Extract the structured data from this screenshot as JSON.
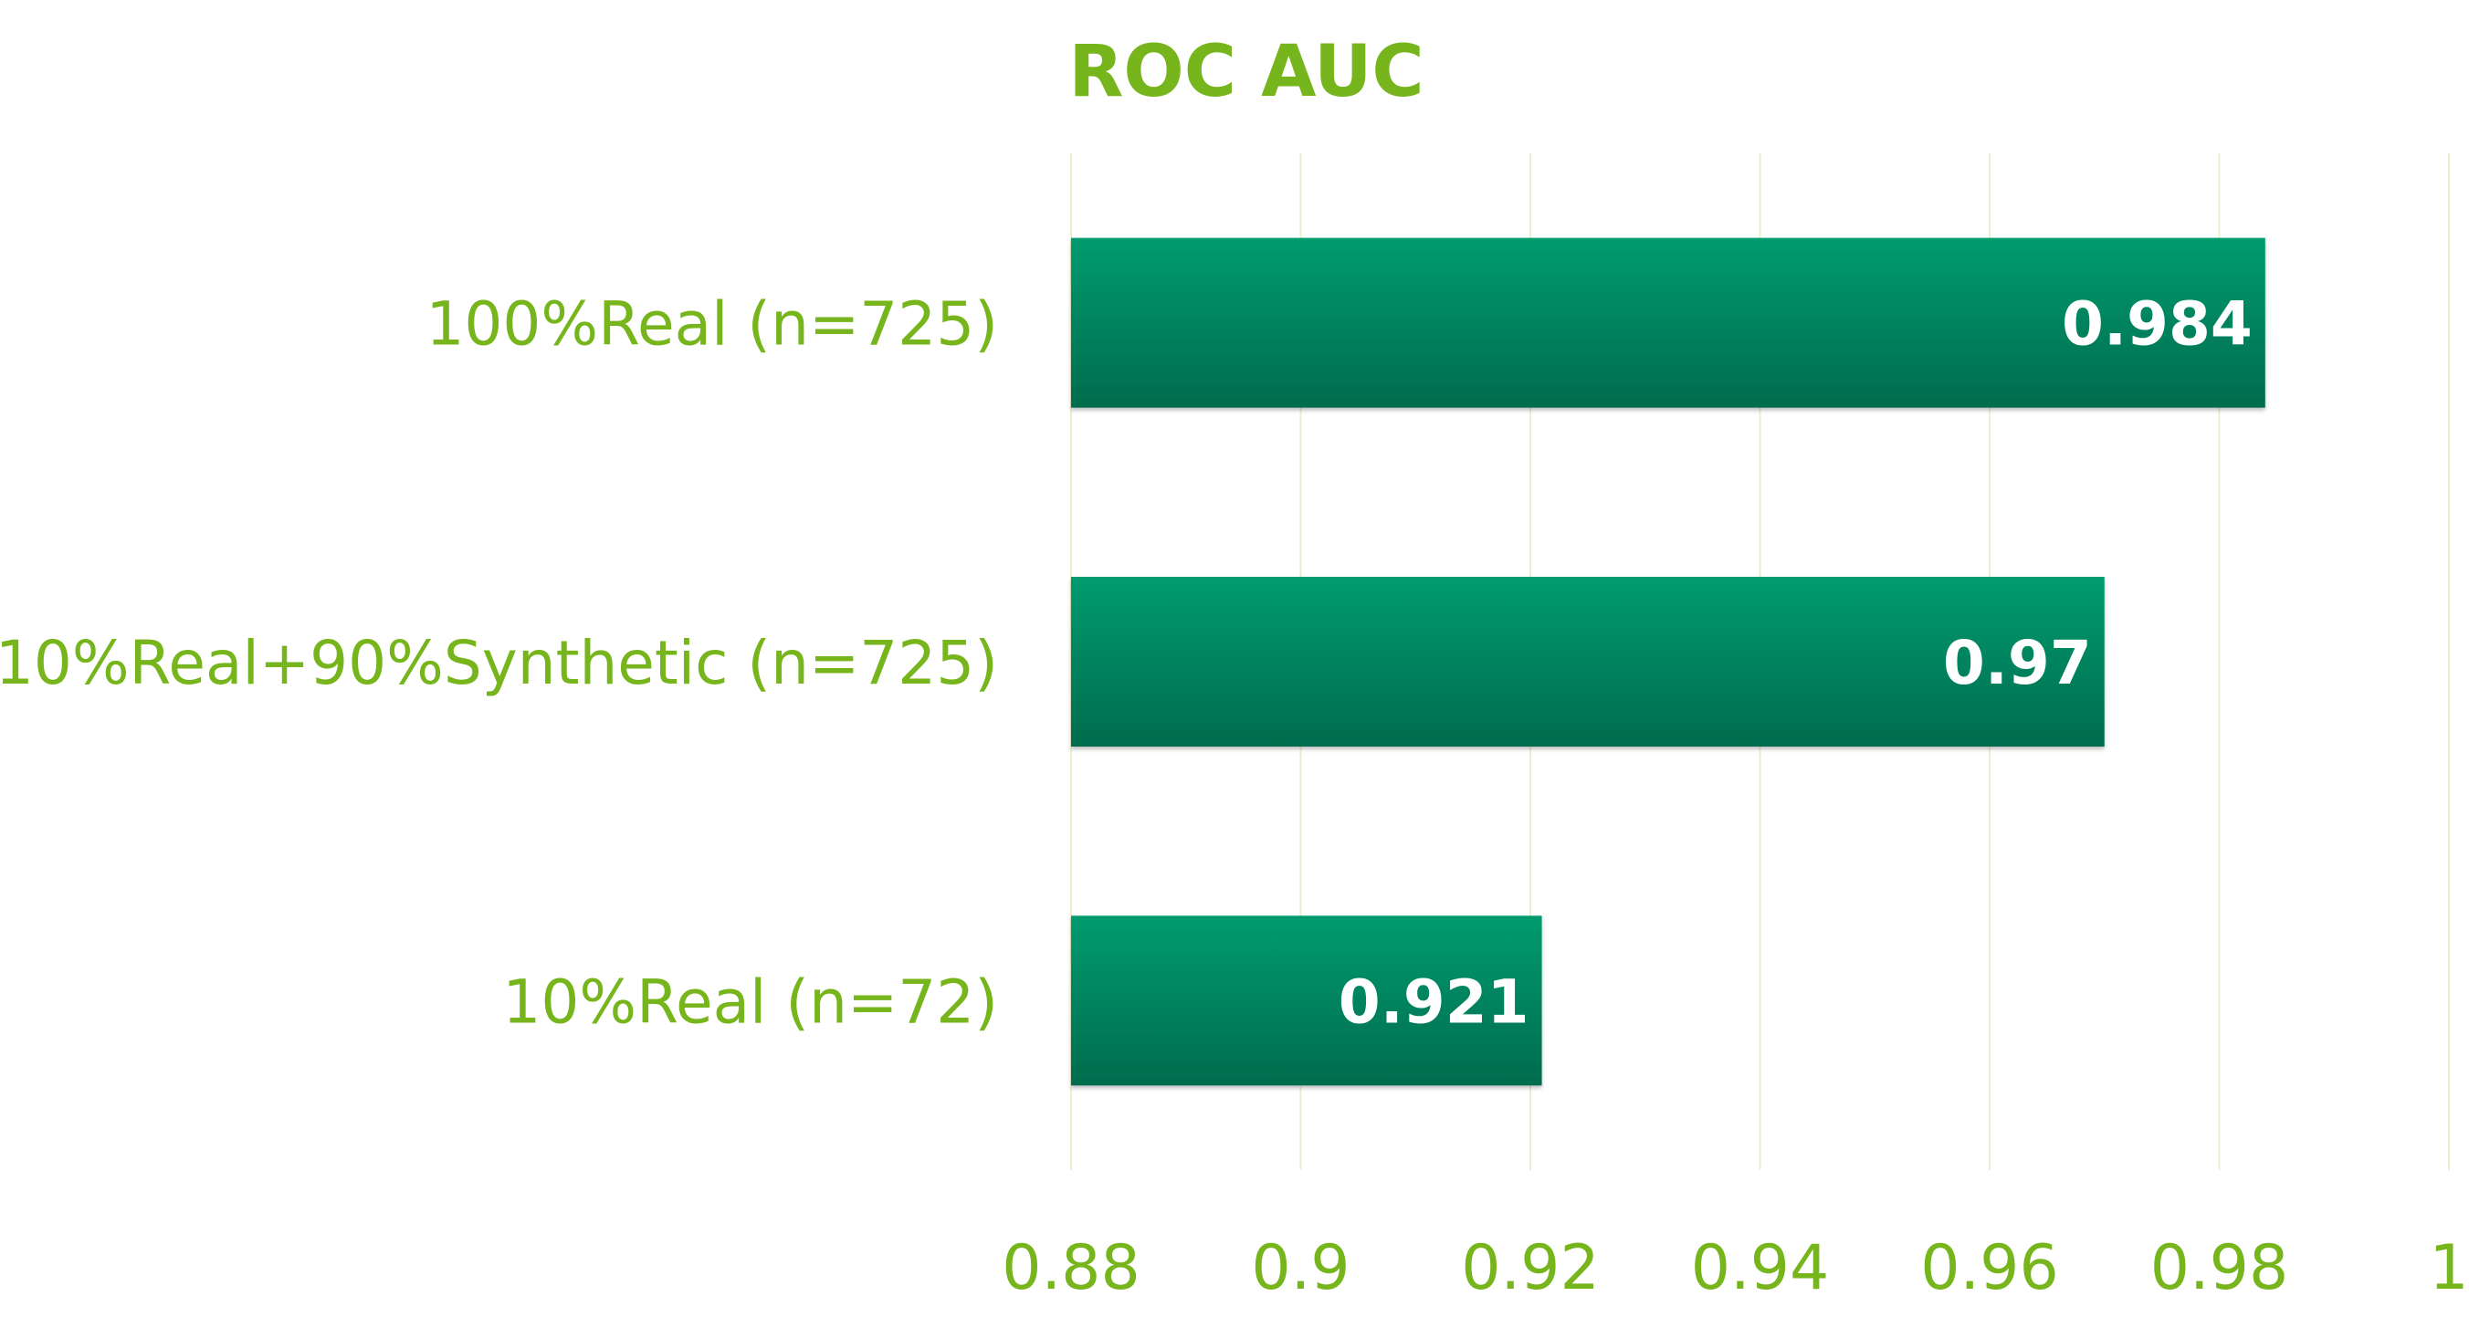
{
  "chart_data": {
    "type": "bar",
    "orientation": "horizontal",
    "title": "ROC AUC",
    "categories": [
      "100%Real (n=725)",
      "10%Real+90%Synthetic (n=725)",
      "10%Real (n=72)"
    ],
    "values": [
      0.984,
      0.97,
      0.921
    ],
    "data_labels": [
      "0.984",
      "0.97",
      "0.921"
    ],
    "xlim": [
      0.88,
      1.0
    ],
    "x_ticks": [
      0.88,
      0.9,
      0.92,
      0.94,
      0.96,
      0.98,
      1.0
    ],
    "x_tick_labels": [
      "0.88",
      "0.9",
      "0.92",
      "0.94",
      "0.96",
      "0.98",
      "1"
    ],
    "xlabel": "",
    "ylabel": "",
    "grid": "vertical",
    "legend": "none",
    "colors": {
      "text": "#77b51c",
      "bar_top": "#009b6f",
      "bar_bottom": "#006c4d",
      "bar_label": "#ffffff",
      "grid": "#eaf0cf"
    }
  }
}
